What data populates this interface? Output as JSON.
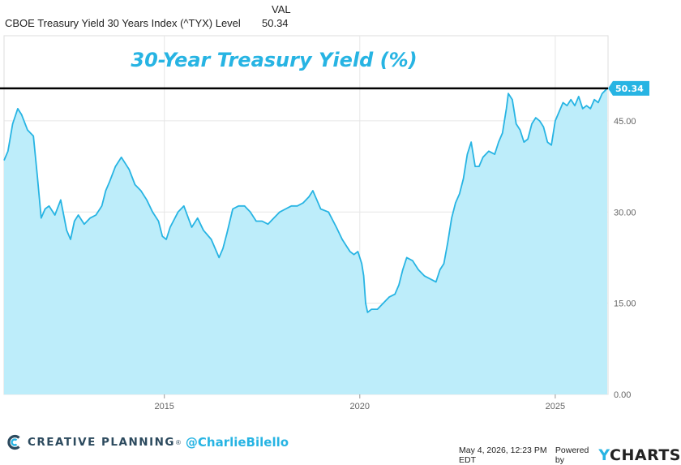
{
  "legend": {
    "column_header": "VAL",
    "series_name": "CBOE Treasury Yield 30 Years Index (^TYX) Level",
    "series_value": "50.34"
  },
  "colors": {
    "line": "#27b4e3",
    "fill": "#bdedfa",
    "ref_line": "#000000",
    "badge": "#27b4e3",
    "title": "#27b4e3"
  },
  "footer": {
    "brand": "CREATIVE PLANNING",
    "brand_mark": "®",
    "handle": "@CharlieBilello",
    "timestamp": "May 4, 2026, 12:23 PM EDT",
    "powered_by": "Powered by",
    "ycharts_y": "Y",
    "ycharts_rest": "CHARTS",
    "logo_icon": "creative-planning-logo-icon"
  },
  "chart_data": {
    "type": "area",
    "title": "30-Year Treasury Yield (%)",
    "xlabel": "",
    "ylabel": "",
    "xlim": [
      2010.9,
      2026.35
    ],
    "ylim": [
      0,
      59
    ],
    "x_ticks": [
      2015,
      2020,
      2025
    ],
    "x_tick_labels": [
      "2015",
      "2020",
      "2025"
    ],
    "y_ticks": [
      0,
      15,
      30,
      45
    ],
    "y_tick_labels": [
      "0.00",
      "15.00",
      "30.00",
      "45.00"
    ],
    "grid": true,
    "last_value_label": "50.34",
    "reference_line": 50.34,
    "series": [
      {
        "x": [
          2010.9,
          2011.0,
          2011.12,
          2011.25,
          2011.35,
          2011.5,
          2011.65,
          2011.75,
          2011.85,
          2011.95,
          2012.05,
          2012.2,
          2012.35,
          2012.5,
          2012.6,
          2012.7,
          2012.8,
          2012.95,
          2013.1,
          2013.25,
          2013.4,
          2013.5,
          2013.6,
          2013.75,
          2013.9,
          2014.0,
          2014.1,
          2014.25,
          2014.4,
          2014.55,
          2014.7,
          2014.85,
          2014.95,
          2015.05,
          2015.15,
          2015.35,
          2015.5,
          2015.7,
          2015.85,
          2016.0,
          2016.2,
          2016.4,
          2016.5,
          2016.6,
          2016.75,
          2016.9,
          2017.05,
          2017.2,
          2017.35,
          2017.5,
          2017.65,
          2017.8,
          2017.95,
          2018.1,
          2018.25,
          2018.4,
          2018.55,
          2018.7,
          2018.8,
          2018.9,
          2019.0,
          2019.2,
          2019.4,
          2019.55,
          2019.65,
          2019.75,
          2019.85,
          2019.95,
          2020.05,
          2020.1,
          2020.15,
          2020.2,
          2020.3,
          2020.45,
          2020.6,
          2020.75,
          2020.9,
          2021.0,
          2021.1,
          2021.2,
          2021.35,
          2021.5,
          2021.65,
          2021.8,
          2021.95,
          2022.05,
          2022.15,
          2022.25,
          2022.35,
          2022.45,
          2022.55,
          2022.65,
          2022.75,
          2022.85,
          2022.95,
          2023.05,
          2023.15,
          2023.3,
          2023.45,
          2023.55,
          2023.65,
          2023.75,
          2023.8,
          2023.9,
          2024.0,
          2024.1,
          2024.2,
          2024.3,
          2024.4,
          2024.5,
          2024.6,
          2024.7,
          2024.8,
          2024.9,
          2025.0,
          2025.1,
          2025.2,
          2025.3,
          2025.4,
          2025.5,
          2025.6,
          2025.7,
          2025.8,
          2025.9,
          2026.0,
          2026.1,
          2026.2,
          2026.33
        ],
        "values": [
          38.5,
          40.0,
          44.5,
          47.0,
          46.0,
          43.5,
          42.5,
          36.0,
          29.0,
          30.5,
          31.0,
          29.5,
          32.0,
          27.0,
          25.5,
          28.5,
          29.5,
          28.0,
          29.0,
          29.5,
          31.0,
          33.5,
          35.0,
          37.5,
          39.0,
          38.0,
          37.0,
          34.5,
          33.5,
          32.0,
          30.0,
          28.5,
          26.0,
          25.5,
          27.5,
          30.0,
          31.0,
          27.5,
          29.0,
          27.0,
          25.5,
          22.5,
          24.0,
          26.5,
          30.5,
          31.0,
          31.0,
          30.0,
          28.5,
          28.5,
          28.0,
          29.0,
          30.0,
          30.5,
          31.0,
          31.0,
          31.5,
          32.5,
          33.5,
          32.0,
          30.5,
          30.0,
          27.5,
          25.5,
          24.5,
          23.5,
          23.0,
          23.5,
          21.5,
          19.5,
          15.0,
          13.5,
          14.0,
          14.0,
          15.0,
          16.0,
          16.5,
          18.0,
          20.5,
          22.5,
          22.0,
          20.5,
          19.5,
          19.0,
          18.5,
          20.5,
          21.5,
          25.0,
          29.0,
          31.5,
          33.0,
          35.5,
          39.5,
          41.5,
          37.5,
          37.5,
          39.0,
          40.0,
          39.5,
          41.5,
          43.0,
          47.0,
          49.5,
          48.5,
          44.5,
          43.5,
          41.5,
          42.0,
          44.5,
          45.5,
          45.0,
          44.0,
          41.5,
          41.0,
          45.0,
          46.5,
          48.0,
          47.5,
          48.5,
          47.5,
          49.0,
          47.0,
          47.5,
          47.0,
          48.5,
          48.0,
          49.5,
          50.34
        ]
      }
    ]
  }
}
